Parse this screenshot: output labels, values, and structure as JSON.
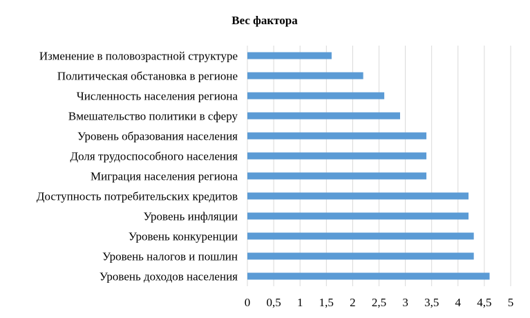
{
  "chart_data": {
    "type": "bar",
    "orientation": "horizontal",
    "title": "Вес фактора",
    "categories": [
      "Изменение  в половозрастной структуре",
      "Политическая  обстановка в регионе",
      "Численность  населения  региона",
      "Вмешательство  политики  в сферу",
      "Уровень образования населения",
      "Доля трудоспособного населения",
      "Миграция населения  региона",
      "Доступность  потребительских  кредитов",
      "Уровень инфляции",
      "Уровень конкуренции",
      "Уровень налогов и пошлин",
      "Уровень доходов населения"
    ],
    "values": [
      1.6,
      2.2,
      2.6,
      2.9,
      3.4,
      3.4,
      3.4,
      4.2,
      4.2,
      4.3,
      4.3,
      4.6
    ],
    "xlim": [
      0,
      5
    ],
    "xticks": [
      0,
      0.5,
      1,
      1.5,
      2,
      2.5,
      3,
      3.5,
      4,
      4.5,
      5
    ],
    "xtick_labels": [
      "0",
      "0,5",
      "1",
      "1,5",
      "2",
      "2,5",
      "3",
      "3,5",
      "4",
      "4,5",
      "5"
    ],
    "grid": "vertical",
    "legend": "none",
    "bar_color": "#5b9bd5",
    "grid_color": "#d9d9d9"
  }
}
